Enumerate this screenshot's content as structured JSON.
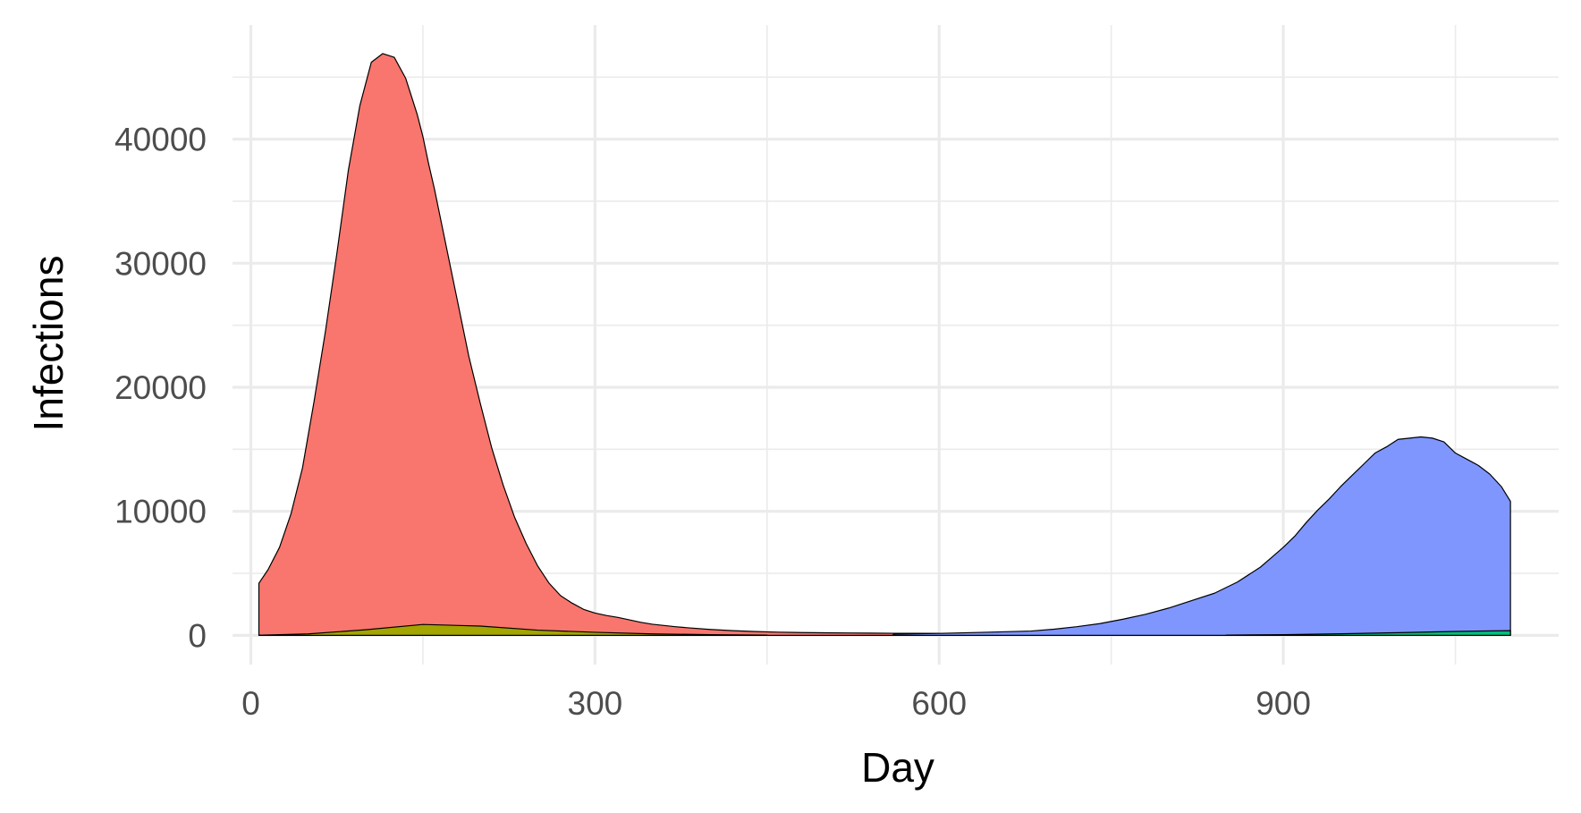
{
  "chart_data": {
    "type": "area",
    "title": "",
    "xlabel": "Day",
    "ylabel": "Infections",
    "xlim": [
      -16,
      1140
    ],
    "ylim": [
      -2350,
      49200
    ],
    "x_ticks": [
      0,
      300,
      600,
      900
    ],
    "x_tick_labels": [
      "0",
      "300",
      "600",
      "900"
    ],
    "x_minor_ticks": [
      150,
      450,
      750,
      1050
    ],
    "y_ticks": [
      0,
      10000,
      20000,
      30000,
      40000
    ],
    "y_tick_labels": [
      "0",
      "10000",
      "20000",
      "30000",
      "40000"
    ],
    "y_minor_ticks": [
      5000,
      15000,
      25000,
      35000,
      45000
    ],
    "grid": true,
    "legend": "none",
    "outline_color": "#000000",
    "series": [
      {
        "color": "#F8766D",
        "x": [
          7,
          15,
          25,
          35,
          45,
          55,
          65,
          75,
          85,
          95,
          105,
          115,
          125,
          135,
          145,
          150,
          155,
          160,
          170,
          180,
          190,
          200,
          210,
          220,
          230,
          240,
          250,
          260,
          270,
          280,
          290,
          300,
          310,
          320,
          330,
          340,
          350,
          360,
          370,
          380,
          400,
          420,
          440,
          460,
          480,
          500,
          520,
          540,
          560,
          580,
          600
        ],
        "y": [
          4200,
          5300,
          7100,
          9800,
          13500,
          18800,
          24500,
          30800,
          37500,
          42700,
          46200,
          46900,
          46600,
          44900,
          42000,
          40200,
          38000,
          36000,
          31500,
          27000,
          22500,
          18700,
          15100,
          12100,
          9500,
          7400,
          5600,
          4200,
          3200,
          2600,
          2100,
          1800,
          1600,
          1450,
          1250,
          1050,
          900,
          800,
          700,
          620,
          480,
          380,
          310,
          260,
          230,
          210,
          195,
          180,
          170,
          165,
          160
        ]
      },
      {
        "color": "#7F96FF",
        "x": [
          560,
          600,
          640,
          680,
          700,
          720,
          740,
          760,
          780,
          800,
          820,
          840,
          860,
          870,
          880,
          890,
          900,
          910,
          920,
          930,
          940,
          950,
          960,
          970,
          980,
          990,
          1000,
          1010,
          1020,
          1030,
          1040,
          1050,
          1060,
          1070,
          1080,
          1090,
          1098
        ],
        "y": [
          100,
          160,
          250,
          350,
          500,
          700,
          950,
          1300,
          1700,
          2200,
          2800,
          3400,
          4300,
          4900,
          5500,
          6300,
          7100,
          8000,
          9100,
          10100,
          11000,
          12000,
          12900,
          13800,
          14700,
          15200,
          15800,
          15900,
          16000,
          15900,
          15600,
          14700,
          14200,
          13700,
          13000,
          12000,
          10800
        ]
      },
      {
        "color": "#A3A500",
        "x": [
          7,
          50,
          100,
          150,
          200,
          250,
          300,
          350,
          400,
          450
        ],
        "y": [
          10,
          120,
          450,
          880,
          750,
          420,
          250,
          120,
          60,
          25
        ]
      },
      {
        "color": "#00BF7D",
        "x": [
          850,
          900,
          950,
          1000,
          1050,
          1098
        ],
        "y": [
          20,
          60,
          130,
          220,
          320,
          380
        ]
      }
    ]
  }
}
